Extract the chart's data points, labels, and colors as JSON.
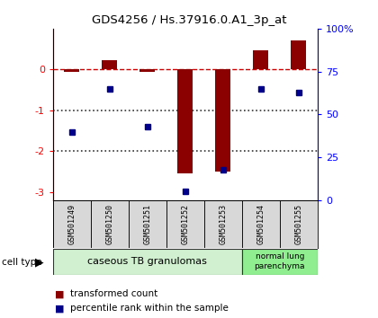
{
  "title": "GDS4256 / Hs.37916.0.A1_3p_at",
  "samples": [
    "GSM501249",
    "GSM501250",
    "GSM501251",
    "GSM501252",
    "GSM501253",
    "GSM501254",
    "GSM501255"
  ],
  "transformed_count": [
    -0.05,
    0.22,
    -0.05,
    -2.55,
    -2.5,
    0.48,
    0.72
  ],
  "percentile_rank": [
    40,
    65,
    43,
    5,
    18,
    65,
    63
  ],
  "ylim_left": [
    -3.2,
    1.0
  ],
  "ylim_right": [
    0,
    100
  ],
  "bar_color": "#8B0000",
  "dot_color": "#00008B",
  "dashed_line_color": "#CC0000",
  "dotted_line_color": "#333333",
  "cell_types": [
    {
      "label": "caseous TB granulomas",
      "span": [
        0,
        4
      ],
      "color": "#d0f0d0"
    },
    {
      "label": "normal lung\nparenchyma",
      "span": [
        5,
        6
      ],
      "color": "#90ee90"
    }
  ],
  "legend_bar_label": "transformed count",
  "legend_dot_label": "percentile rank within the sample",
  "cell_type_label": "cell type",
  "background_color": "#ffffff"
}
